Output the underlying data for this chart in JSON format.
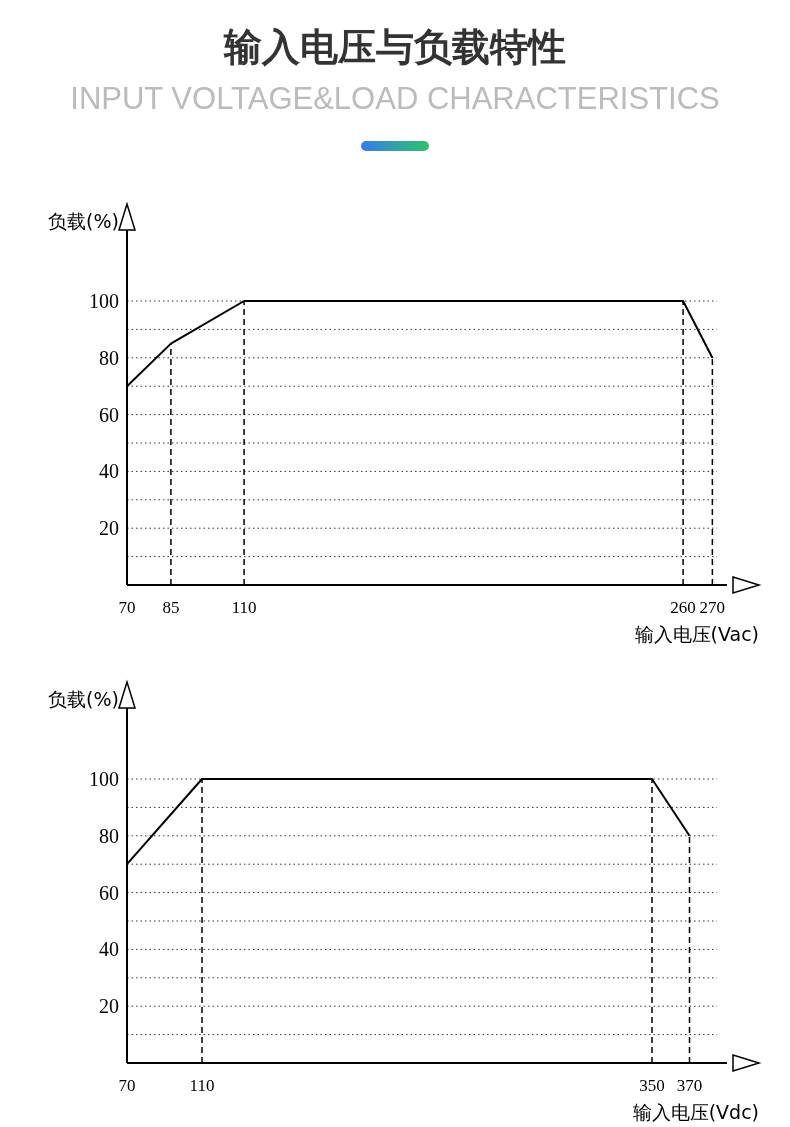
{
  "chart_data": [
    {
      "type": "line",
      "title": "输入电压与负载特性",
      "subtitle": "INPUT VOLTAGE&LOAD CHARACTERISTICS",
      "xlabel": "输入电压(Vac)",
      "ylabel": "负载(%)",
      "xlim": [
        70,
        275
      ],
      "xticks": [
        70,
        85,
        110,
        260,
        270
      ],
      "ylim": [
        0,
        125
      ],
      "yticks": [
        {
          "value": 10,
          "label": null
        },
        20,
        {
          "value": 30,
          "label": null
        },
        40,
        {
          "value": 50,
          "label": null
        },
        60,
        {
          "value": 70,
          "label": null
        },
        80,
        {
          "value": 90,
          "label": null
        },
        100
      ],
      "grid": "y",
      "marker": "none",
      "line_style": "solid",
      "series": [
        {
          "color": "#000000",
          "x": [
            70,
            85,
            110,
            260,
            270
          ],
          "values": [
            70,
            85,
            100,
            100,
            80
          ]
        }
      ],
      "ref_lines": [
        {
          "axis": "x",
          "value": 85,
          "line_style": "dashed"
        },
        {
          "axis": "x",
          "value": 110,
          "line_style": "dashed"
        },
        {
          "axis": "x",
          "value": 260,
          "line_style": "dashed"
        },
        {
          "axis": "x",
          "value": 270,
          "line_style": "dashed"
        }
      ]
    },
    {
      "type": "line",
      "xlabel": "输入电压(Vdc)",
      "ylabel": "负载(%)",
      "xlim": [
        70,
        390
      ],
      "xticks": [
        70,
        110,
        350,
        370
      ],
      "ylim": [
        0,
        125
      ],
      "yticks": [
        {
          "value": 10,
          "label": null
        },
        20,
        {
          "value": 30,
          "label": null
        },
        40,
        {
          "value": 50,
          "label": null
        },
        60,
        {
          "value": 70,
          "label": null
        },
        80,
        {
          "value": 90,
          "label": null
        },
        100
      ],
      "grid": "y",
      "marker": "none",
      "line_style": "solid",
      "series": [
        {
          "color": "#000000",
          "x": [
            70,
            110,
            350,
            370
          ],
          "values": [
            70,
            100,
            100,
            80
          ]
        }
      ],
      "ref_lines": [
        {
          "axis": "x",
          "value": 110,
          "line_style": "dashed"
        },
        {
          "axis": "x",
          "value": 350,
          "line_style": "dashed"
        },
        {
          "axis": "x",
          "value": 370,
          "line_style": "dashed"
        }
      ]
    }
  ]
}
